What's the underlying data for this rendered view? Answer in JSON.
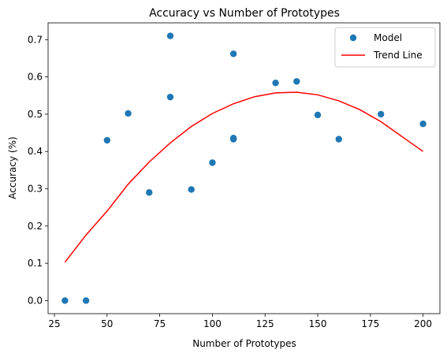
{
  "chart_data": {
    "type": "scatter",
    "title": "Accuracy vs Number of Prototypes",
    "xlabel": "Number of Prototypes",
    "ylabel": "Accuracy (%)",
    "xlim": [
      22,
      208
    ],
    "ylim": [
      -0.035,
      0.745
    ],
    "xticks": [
      25,
      50,
      75,
      100,
      125,
      150,
      175,
      200
    ],
    "yticks": [
      0.0,
      0.1,
      0.2,
      0.3,
      0.4,
      0.5,
      0.6,
      0.7
    ],
    "grid": false,
    "legend_position": "top-right",
    "series": [
      {
        "name": "Model",
        "kind": "scatter",
        "color": "#1f77b4",
        "x": [
          30,
          40,
          50,
          60,
          70,
          80,
          80,
          90,
          100,
          110,
          110,
          110,
          130,
          140,
          150,
          160,
          180,
          200
        ],
        "y": [
          0.0,
          0.0,
          0.43,
          0.502,
          0.29,
          0.71,
          0.546,
          0.298,
          0.37,
          0.662,
          0.433,
          0.436,
          0.584,
          0.588,
          0.498,
          0.433,
          0.5,
          0.474
        ]
      },
      {
        "name": "Trend Line",
        "kind": "line",
        "color": "#ff0000",
        "x": [
          30,
          40,
          50,
          60,
          70,
          80,
          90,
          100,
          110,
          120,
          130,
          140,
          150,
          160,
          170,
          180,
          190,
          200
        ],
        "y": [
          0.103,
          0.176,
          0.24,
          0.312,
          0.372,
          0.423,
          0.467,
          0.502,
          0.528,
          0.547,
          0.557,
          0.559,
          0.552,
          0.536,
          0.512,
          0.48,
          0.44,
          0.4
        ]
      }
    ]
  }
}
